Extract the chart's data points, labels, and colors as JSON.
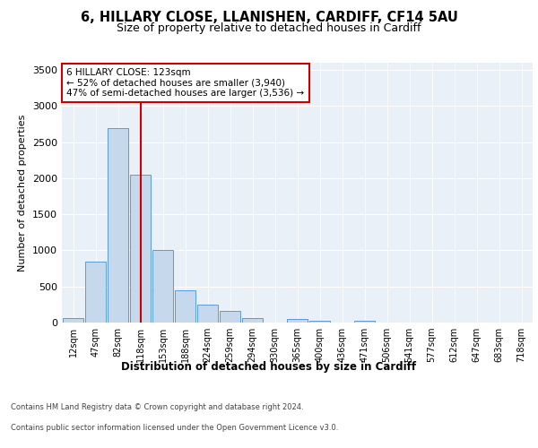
{
  "title": "6, HILLARY CLOSE, LLANISHEN, CARDIFF, CF14 5AU",
  "subtitle": "Size of property relative to detached houses in Cardiff",
  "xlabel": "Distribution of detached houses by size in Cardiff",
  "ylabel": "Number of detached properties",
  "bar_labels": [
    "12sqm",
    "47sqm",
    "82sqm",
    "118sqm",
    "153sqm",
    "188sqm",
    "224sqm",
    "259sqm",
    "294sqm",
    "330sqm",
    "365sqm",
    "400sqm",
    "436sqm",
    "471sqm",
    "506sqm",
    "541sqm",
    "577sqm",
    "612sqm",
    "647sqm",
    "683sqm",
    "718sqm"
  ],
  "bar_values": [
    60,
    850,
    2700,
    2050,
    1000,
    450,
    245,
    160,
    65,
    0,
    45,
    30,
    0,
    20,
    0,
    0,
    0,
    0,
    0,
    0,
    0
  ],
  "bar_color": "#c6d9ec",
  "bar_edge_color": "#5b9bd5",
  "vline_x": 3,
  "vline_color": "#cc0000",
  "annotation_line1": "6 HILLARY CLOSE: 123sqm",
  "annotation_line2": "← 52% of detached houses are smaller (3,940)",
  "annotation_line3": "47% of semi-detached houses are larger (3,536) →",
  "annotation_box_color": "#ffffff",
  "annotation_box_edge": "#cc0000",
  "ylim": [
    0,
    3600
  ],
  "yticks": [
    0,
    500,
    1000,
    1500,
    2000,
    2500,
    3000,
    3500
  ],
  "axes_bg_color": "#eaf0f8",
  "footer_line1": "Contains HM Land Registry data © Crown copyright and database right 2024.",
  "footer_line2": "Contains public sector information licensed under the Open Government Licence v3.0."
}
